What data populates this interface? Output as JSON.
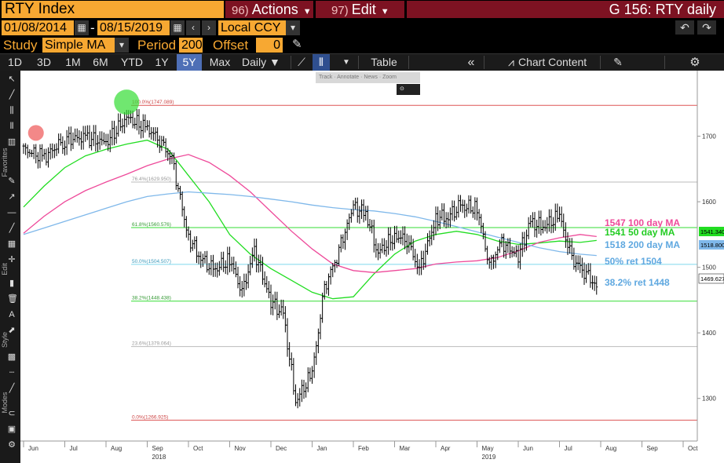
{
  "header": {
    "security": "RTY Index",
    "actions_num": "96)",
    "actions_label": "Actions",
    "edit_num": "97)",
    "edit_label": "Edit",
    "chart_title": "G 156: RTY daily"
  },
  "controls": {
    "start_date": "01/08/2014",
    "end_date": "08/15/2019",
    "date_sep": "-",
    "currency": "Local CCY",
    "study_label": "Study",
    "study_value": "Simple MA",
    "period_label": "Period",
    "period_value": "200",
    "offset_label": "Offset",
    "offset_value": "0"
  },
  "toolbar": {
    "ranges": [
      "1D",
      "3D",
      "1M",
      "6M",
      "YTD",
      "1Y",
      "5Y",
      "Max"
    ],
    "active_range": "5Y",
    "frequency": "Daily",
    "table_label": "Table",
    "chart_content_label": "Chart Content"
  },
  "chart_tools": {
    "track": "Track",
    "annotate": "Annotate",
    "news": "News",
    "zoom": "Zoom",
    "reset": "Reset"
  },
  "side_labels": {
    "favorites": "Favorites",
    "edit": "Edit",
    "style": "Style",
    "modes": "Modes"
  },
  "colors": {
    "price": "#000000",
    "ma50": "#22dd22",
    "ma100": "#ee4a9a",
    "ma200": "#7fb8ea",
    "accent": "#f7a832",
    "menu": "#7d1222"
  },
  "chart_data": {
    "type": "line",
    "ylim": [
      1235,
      1800
    ],
    "y_ticks": [
      1300,
      1400,
      1500,
      1600,
      1700
    ],
    "x_labels": [
      "Jun",
      "Jul",
      "Aug",
      "Sep",
      "Oct",
      "Nov",
      "Dec",
      "Jan",
      "Feb",
      "Mar",
      "Apr",
      "May",
      "Jun",
      "Jul",
      "Aug",
      "Sep",
      "Oct"
    ],
    "year_labels": [
      {
        "text": "2018",
        "month_index": 3
      },
      {
        "text": "2019",
        "month_index": 11
      }
    ],
    "series": [
      {
        "name": "RTY Index",
        "type": "ohlc",
        "x": [
          0,
          0.5,
          1,
          1.5,
          2,
          2.5,
          3,
          3.3,
          3.6,
          4,
          4.3,
          4.6,
          5,
          5.3,
          5.6,
          6,
          6.3,
          6.6,
          7,
          7.3,
          7.6,
          8,
          8.3,
          8.6,
          9,
          9.3,
          9.6,
          10,
          10.3,
          10.6,
          11,
          11.3,
          11.6,
          12,
          12.3,
          12.6,
          13,
          13.3,
          13.6,
          13.9
        ],
        "y": [
          1680,
          1668,
          1695,
          1698,
          1690,
          1728,
          1712,
          1695,
          1665,
          1545,
          1515,
          1495,
          1512,
          1462,
          1525,
          1448,
          1428,
          1296,
          1338,
          1468,
          1518,
          1592,
          1582,
          1522,
          1548,
          1542,
          1495,
          1575,
          1578,
          1593,
          1590,
          1503,
          1538,
          1518,
          1568,
          1562,
          1578,
          1512,
          1495,
          1470
        ]
      },
      {
        "name": "50 day MA",
        "label": "1541 50 day MA",
        "x": [
          0,
          0.5,
          1,
          1.5,
          2,
          2.5,
          3,
          3.5,
          4,
          4.5,
          5,
          5.5,
          6,
          6.5,
          7,
          7.5,
          8,
          8.5,
          9,
          9.5,
          10,
          10.5,
          11,
          11.5,
          12,
          12.5,
          13,
          13.5,
          13.9
        ],
        "y": [
          1592,
          1624,
          1652,
          1670,
          1680,
          1688,
          1694,
          1680,
          1640,
          1600,
          1550,
          1520,
          1498,
          1480,
          1462,
          1452,
          1455,
          1490,
          1520,
          1540,
          1550,
          1555,
          1550,
          1540,
          1535,
          1537,
          1540,
          1538,
          1541
        ]
      },
      {
        "name": "100 day MA",
        "label": "1547 100 day MA",
        "x": [
          0,
          0.5,
          1,
          1.5,
          2,
          2.5,
          3,
          3.5,
          4,
          4.5,
          5,
          5.5,
          6,
          6.5,
          7,
          7.5,
          8,
          8.5,
          9,
          9.5,
          10,
          10.5,
          11,
          11.5,
          12,
          12.5,
          13,
          13.5,
          13.9
        ],
        "y": [
          1552,
          1578,
          1600,
          1617,
          1630,
          1642,
          1655,
          1665,
          1672,
          1660,
          1640,
          1615,
          1585,
          1555,
          1528,
          1505,
          1495,
          1492,
          1495,
          1498,
          1505,
          1508,
          1510,
          1515,
          1525,
          1538,
          1545,
          1550,
          1547
        ]
      },
      {
        "name": "200 day MA",
        "label": "1518 200 day MA",
        "x": [
          0,
          0.5,
          1,
          1.5,
          2,
          2.5,
          3,
          3.5,
          4,
          4.5,
          5,
          5.5,
          6,
          6.5,
          7,
          7.5,
          8,
          8.5,
          9,
          9.5,
          10,
          10.5,
          11,
          11.5,
          12,
          12.5,
          13,
          13.5,
          13.9
        ],
        "y": [
          1550,
          1560,
          1570,
          1580,
          1590,
          1600,
          1608,
          1612,
          1615,
          1613,
          1611,
          1608,
          1604,
          1600,
          1595,
          1591,
          1588,
          1586,
          1582,
          1577,
          1570,
          1562,
          1554,
          1546,
          1538,
          1530,
          1524,
          1520,
          1518
        ]
      }
    ],
    "fib_levels": [
      {
        "label": "100.0%(1747.089)",
        "value": 1747.089,
        "color": "#dd5555"
      },
      {
        "label": "76.4%(1629.950)",
        "value": 1629.95,
        "color": "#bbbbbb"
      },
      {
        "label": "61.8%(1560.576)",
        "value": 1560.576,
        "color": "#33dd33"
      },
      {
        "label": "50.0%(1504.507)",
        "value": 1504.507,
        "color": "#7fd6ee"
      },
      {
        "label": "38.2%(1448.438)",
        "value": 1448.438,
        "color": "#33dd33"
      },
      {
        "label": "23.6%(1379.064)",
        "value": 1379.064,
        "color": "#bbbbbb"
      },
      {
        "label": "0.0%(1266.925)",
        "value": 1266.925,
        "color": "#dd5555"
      }
    ],
    "annotations": [
      {
        "text": "1547 100 day MA",
        "color": "#ee4a9a",
        "value": 1547
      },
      {
        "text": "1541 50 day MA",
        "color": "#22cc22",
        "value": 1541
      },
      {
        "text": "1518 200 day MA",
        "color": "#5fa8e0",
        "value": 1518
      },
      {
        "text": "50% ret 1504",
        "color": "#5fa8e0",
        "value": 1504
      },
      {
        "text": "38.2% ret 1448",
        "color": "#5fa8e0",
        "value": 1448
      }
    ],
    "right_axis_tags": [
      {
        "text": "1541.340",
        "value": 1541.34,
        "color": "#22dd22"
      },
      {
        "text": "1518.800",
        "value": 1518.8,
        "color": "#7fb8ea"
      },
      {
        "text": "1469.627",
        "value": 1469.627,
        "color": "#ffffff"
      }
    ],
    "circles": [
      {
        "x": 0.3,
        "y": 1705,
        "color": "#ee5555"
      },
      {
        "x": 2.5,
        "y": 1752,
        "color": "#33dd33"
      }
    ],
    "grid": false,
    "legend": "right"
  }
}
